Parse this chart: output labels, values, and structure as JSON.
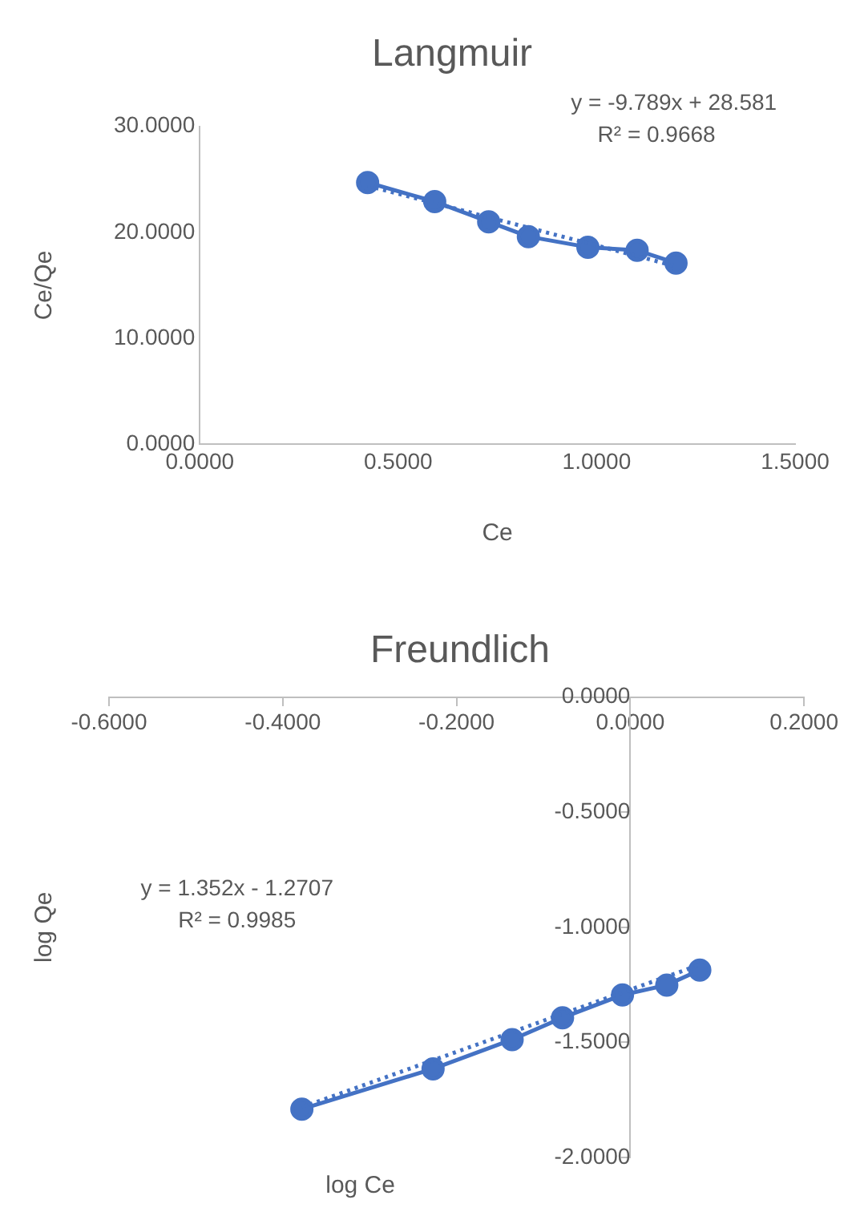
{
  "chart_data": [
    {
      "type": "scatter",
      "title": "Langmuir",
      "xlabel": "Ce",
      "ylabel": "Ce/Qe",
      "xlim": [
        0,
        1.5
      ],
      "xticks": [
        {
          "value": 0,
          "label": "0.0000"
        },
        {
          "value": 0.5,
          "label": "0.5000"
        },
        {
          "value": 1,
          "label": "1.0000"
        },
        {
          "value": 1.5,
          "label": "1.5000"
        }
      ],
      "ylim": [
        0,
        30
      ],
      "yticks": [
        {
          "value": 0,
          "label": "0.0000"
        },
        {
          "value": 10,
          "label": "10.0000"
        },
        {
          "value": 20,
          "label": "20.0000"
        },
        {
          "value": 30,
          "label": "30.0000"
        }
      ],
      "grid": false,
      "legend": false,
      "annotations": [
        "y = -9.789x + 28.581",
        "R² = 0.9668"
      ],
      "series": [
        {
          "type": "line",
          "color": "#4472c4",
          "marker": "circle",
          "line_style": "solid",
          "x": [
            0.423,
            0.592,
            0.728,
            0.828,
            0.978,
            1.102,
            1.2
          ],
          "values": [
            24.7,
            22.9,
            21,
            19.6,
            18.6,
            18.3,
            17.1
          ]
        },
        {
          "type": "line",
          "color": "#4472c4",
          "marker": "none",
          "line_style": "dotted",
          "x": [
            0.423,
            1.2
          ],
          "values": [
            24.4,
            16.8
          ]
        }
      ]
    },
    {
      "type": "scatter",
      "title": "Freundlich",
      "xlabel": "log Ce",
      "ylabel": "log Qe",
      "xlim": [
        -0.6,
        0.2
      ],
      "xticks": [
        {
          "value": -0.6,
          "label": "-0.6000"
        },
        {
          "value": -0.4,
          "label": "-0.4000"
        },
        {
          "value": -0.2,
          "label": "-0.2000"
        },
        {
          "value": 0,
          "label": "0.0000"
        },
        {
          "value": 0.2,
          "label": "0.2000"
        }
      ],
      "ylim": [
        -2,
        0
      ],
      "yticks": [
        {
          "value": -2,
          "label": "-2.0000"
        },
        {
          "value": -1.5,
          "label": "-1.5000"
        },
        {
          "value": -1,
          "label": "-1.0000"
        },
        {
          "value": -0.5,
          "label": "-0.5000"
        },
        {
          "value": 0,
          "label": "0.0000"
        }
      ],
      "grid": false,
      "legend": false,
      "annotations": [
        "y = 1.352x - 1.2707",
        "R² = 0.9985"
      ],
      "series": [
        {
          "type": "line",
          "color": "#4472c4",
          "marker": "circle",
          "line_style": "solid",
          "x": [
            -0.378,
            -0.227,
            -0.136,
            -0.078,
            -0.009,
            0.042,
            0.08
          ],
          "values": [
            -1.79,
            -1.615,
            -1.488,
            -1.393,
            -1.294,
            -1.251,
            -1.186
          ]
        },
        {
          "type": "line",
          "color": "#4472c4",
          "marker": "none",
          "line_style": "dotted",
          "x": [
            -0.378,
            0.08
          ],
          "values": [
            -1.782,
            -1.163
          ]
        }
      ]
    }
  ]
}
